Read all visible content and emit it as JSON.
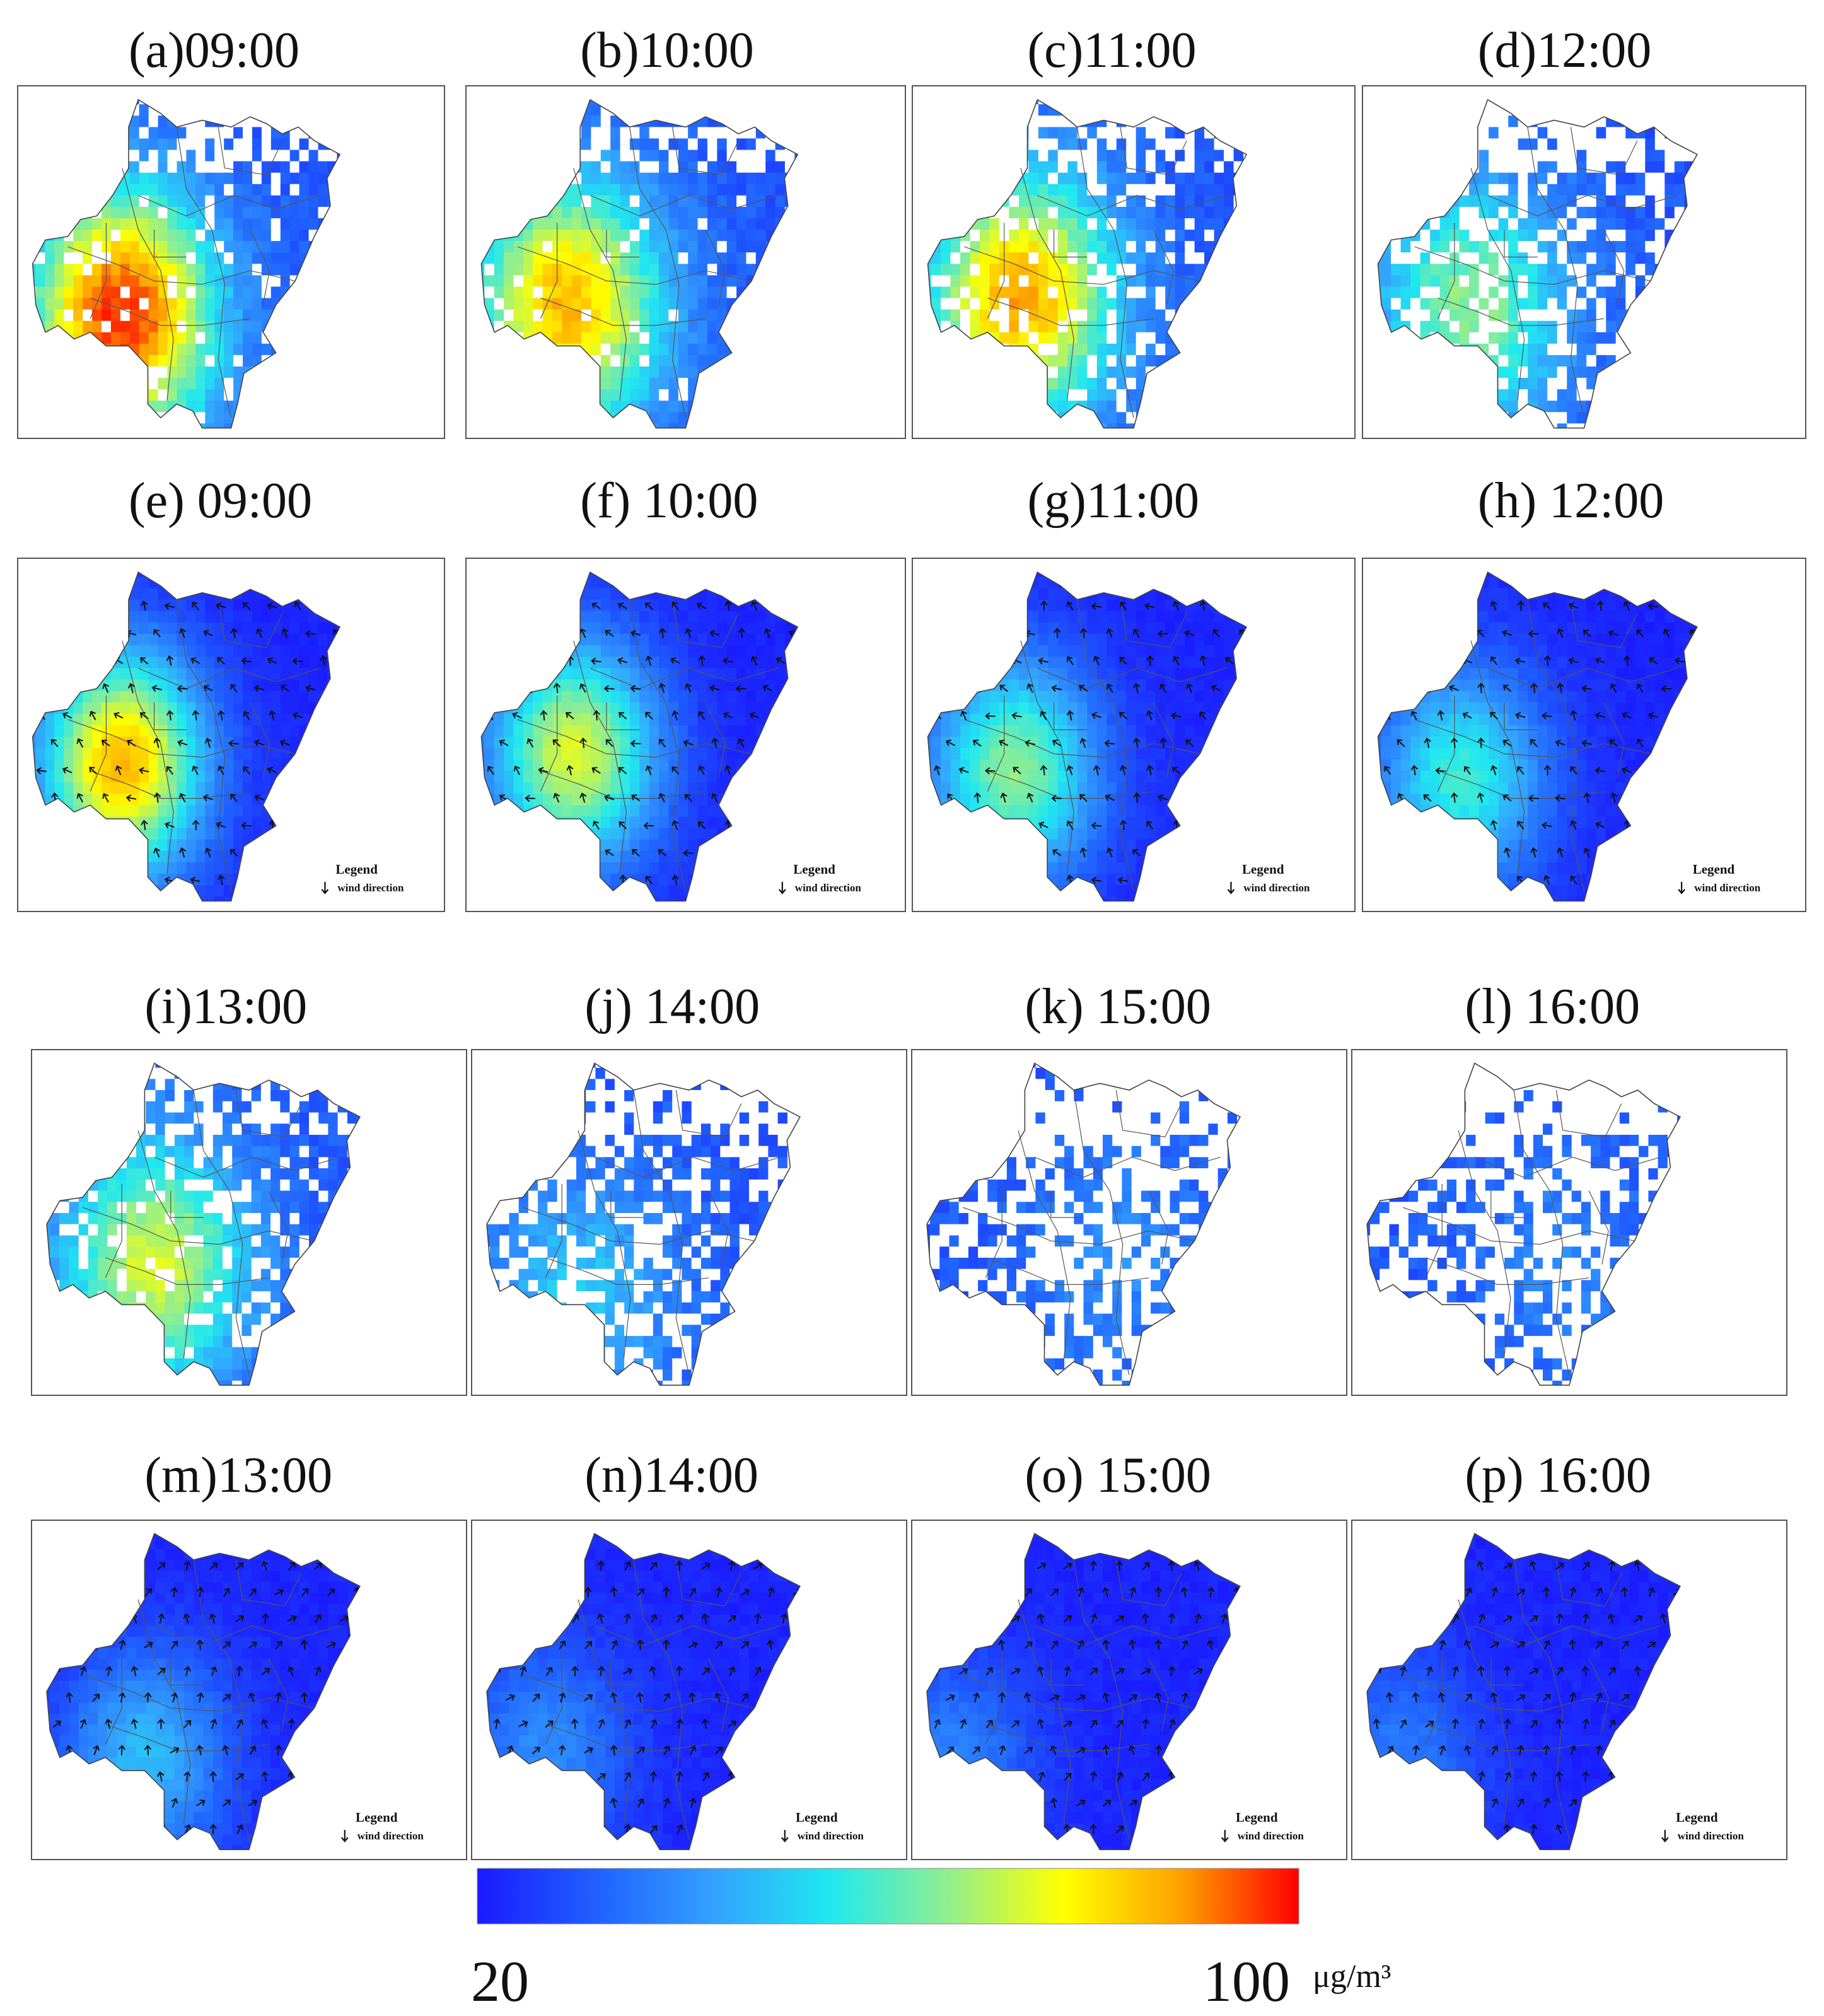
{
  "panels": [
    {
      "id": "a",
      "title": "(a)09:00",
      "kind": "satellite",
      "level": 0.85,
      "coverage": 0.9,
      "hotspot": [
        0.3,
        0.65
      ],
      "seed": 11
    },
    {
      "id": "b",
      "title": "(b)10:00",
      "kind": "satellite",
      "level": 0.7,
      "coverage": 0.92,
      "hotspot": [
        0.28,
        0.62
      ],
      "seed": 23
    },
    {
      "id": "c",
      "title": "(c)11:00",
      "kind": "satellite",
      "level": 0.72,
      "coverage": 0.82,
      "hotspot": [
        0.3,
        0.6
      ],
      "seed": 37
    },
    {
      "id": "d",
      "title": "(d)12:00",
      "kind": "satellite",
      "level": 0.45,
      "coverage": 0.68,
      "hotspot": [
        0.3,
        0.62
      ],
      "seed": 41
    },
    {
      "id": "e",
      "title": "(e) 09:00",
      "kind": "model",
      "level": 0.8,
      "hotspot": [
        0.3,
        0.58
      ],
      "seed": 53
    },
    {
      "id": "f",
      "title": "(f) 10:00",
      "kind": "model",
      "level": 0.65,
      "hotspot": [
        0.3,
        0.55
      ],
      "seed": 61
    },
    {
      "id": "g",
      "title": "(g)11:00",
      "kind": "model",
      "level": 0.55,
      "hotspot": [
        0.28,
        0.6
      ],
      "seed": 71
    },
    {
      "id": "h",
      "title": "(h) 12:00",
      "kind": "model",
      "level": 0.45,
      "hotspot": [
        0.27,
        0.62
      ],
      "seed": 83
    },
    {
      "id": "i",
      "title": "(i)13:00",
      "kind": "satellite",
      "level": 0.55,
      "coverage": 0.8,
      "hotspot": [
        0.35,
        0.62
      ],
      "seed": 97
    },
    {
      "id": "j",
      "title": "(j) 14:00",
      "kind": "satellite",
      "level": 0.25,
      "coverage": 0.62,
      "hotspot": [
        0.3,
        0.72
      ],
      "seed": 101
    },
    {
      "id": "k",
      "title": "(k) 15:00",
      "kind": "satellite",
      "level": 0.12,
      "coverage": 0.5,
      "hotspot": [
        0.6,
        0.6
      ],
      "seed": 113
    },
    {
      "id": "l",
      "title": "(l) 16:00",
      "kind": "satellite",
      "level": 0.1,
      "coverage": 0.46,
      "hotspot": [
        0.6,
        0.6
      ],
      "seed": 127
    },
    {
      "id": "m",
      "title": "(m)13:00",
      "kind": "model",
      "level": 0.32,
      "hotspot": [
        0.32,
        0.7
      ],
      "seed": 131
    },
    {
      "id": "n",
      "title": "(n)14:00",
      "kind": "model",
      "level": 0.22,
      "hotspot": [
        0.2,
        0.68
      ],
      "seed": 139
    },
    {
      "id": "o",
      "title": "(o) 15:00",
      "kind": "model",
      "level": 0.2,
      "hotspot": [
        0.1,
        0.72
      ],
      "seed": 149
    },
    {
      "id": "p",
      "title": "(p) 16:00",
      "kind": "model",
      "level": 0.18,
      "hotspot": [
        0.12,
        0.7
      ],
      "seed": 151
    }
  ],
  "legend": {
    "title": "Legend",
    "item": "wind direction"
  },
  "colorbar": {
    "min_label": "20",
    "max_label": "100",
    "unit": "μg/m³",
    "min": 20,
    "max": 100,
    "stops": [
      "#1a1aff",
      "#2060ff",
      "#33a0ff",
      "#20e8f0",
      "#90ee90",
      "#ffff00",
      "#ffa000",
      "#ff0000"
    ]
  }
}
